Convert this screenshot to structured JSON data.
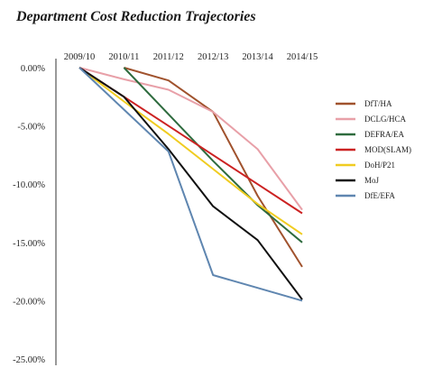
{
  "chart_data": {
    "type": "line",
    "title": "Department Cost Reduction Trajectories",
    "xlabel": "",
    "ylabel": "",
    "categories": [
      "2009/10",
      "2010/11",
      "2011/12",
      "2012/13",
      "2013/14",
      "2014/15"
    ],
    "y_tick_labels": [
      "0.00%",
      "-5.00%",
      "-10.00%",
      "-15.00%",
      "-20.00%",
      "-25.00%"
    ],
    "y_ticks": [
      0,
      -5,
      -10,
      -15,
      -20,
      -25
    ],
    "ylim": [
      -25,
      0
    ],
    "grid": false,
    "legend_position": "right",
    "series": [
      {
        "name": "DfT/HA",
        "color": "#a0522d",
        "values": [
          null,
          0,
          -1.1,
          -3.8,
          -11.0,
          -17.1
        ]
      },
      {
        "name": "DCLG/HCA",
        "color": "#e8a0a8",
        "values": [
          0,
          -1.0,
          -1.9,
          -3.8,
          -7.0,
          -12.2
        ]
      },
      {
        "name": "DEFRA/EA",
        "color": "#2e6b3e",
        "values": [
          null,
          0,
          -4.0,
          -8.0,
          -11.8,
          -15.0
        ]
      },
      {
        "name": "MOD(SLAM)",
        "color": "#cc2222",
        "values": [
          0,
          -2.5,
          -5.0,
          -7.5,
          -10.0,
          -12.5
        ]
      },
      {
        "name": "DoH/P21",
        "color": "#f0cc20",
        "values": [
          0,
          -2.9,
          -5.7,
          -8.7,
          -11.7,
          -14.3
        ]
      },
      {
        "name": "MoJ",
        "color": "#111111",
        "values": [
          0,
          -2.5,
          -7.0,
          -11.9,
          -14.8,
          -19.9
        ]
      },
      {
        "name": "DfE/EFA",
        "color": "#5f86b0",
        "values": [
          0,
          -3.6,
          -7.2,
          -17.8,
          -18.9,
          -20.0
        ]
      }
    ]
  }
}
